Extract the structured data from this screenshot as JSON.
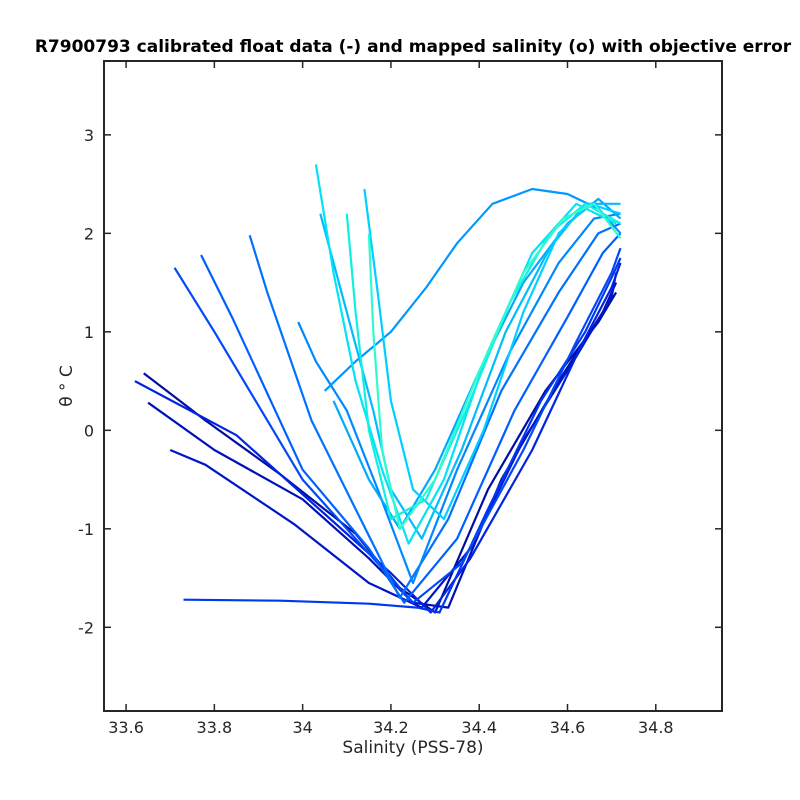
{
  "chart_data": {
    "type": "line",
    "title": "R7900793 calibrated float data (-) and mapped salinity (o) with objective error",
    "xlabel": "Salinity (PSS-78)",
    "ylabel": "θ ° C",
    "xlim": [
      33.55,
      34.95
    ],
    "ylim": [
      -2.85,
      3.75
    ],
    "xticks": [
      33.6,
      33.8,
      34.0,
      34.2,
      34.4,
      34.6,
      34.8
    ],
    "xtick_labels": [
      "33.6",
      "33.8",
      "34",
      "34.2",
      "34.4",
      "34.6",
      "34.8"
    ],
    "yticks": [
      -2,
      -1,
      0,
      1,
      2,
      3
    ],
    "ytick_labels": [
      "-2",
      "-1",
      "0",
      "1",
      "2",
      "3"
    ],
    "grid": false,
    "legend": "none",
    "colormap": "jet (dark blue for early profiles to aqua for later profiles)",
    "series": [
      {
        "color": "#000ea0",
        "x": [
          33.64,
          33.78,
          33.95,
          34.12,
          34.22,
          34.3,
          34.42,
          34.55,
          34.67,
          34.71
        ],
        "y": [
          0.58,
          0.1,
          -0.45,
          -1.05,
          -1.6,
          -1.85,
          -0.6,
          0.4,
          1.1,
          1.4
        ]
      },
      {
        "color": "#0010b8",
        "x": [
          33.65,
          33.8,
          34.0,
          34.15,
          34.25,
          34.33,
          34.45,
          34.58,
          34.68,
          34.71
        ],
        "y": [
          0.28,
          -0.2,
          -0.7,
          -1.3,
          -1.75,
          -1.8,
          -0.5,
          0.5,
          1.2,
          1.5
        ]
      },
      {
        "color": "#0016c8",
        "x": [
          33.7,
          33.78,
          33.98,
          34.15,
          34.27,
          34.38,
          34.5,
          34.62,
          34.7,
          34.71
        ],
        "y": [
          -0.2,
          -0.35,
          -0.95,
          -1.55,
          -1.8,
          -1.2,
          -0.1,
          0.75,
          1.35,
          1.6
        ]
      },
      {
        "color": "#0024e0",
        "x": [
          33.62,
          33.85,
          34.05,
          34.2,
          34.29,
          34.38,
          34.52,
          34.63,
          34.7,
          34.72
        ],
        "y": [
          0.5,
          -0.05,
          -0.85,
          -1.45,
          -1.85,
          -1.3,
          -0.2,
          0.85,
          1.45,
          1.7
        ]
      },
      {
        "color": "#0038f0",
        "x": [
          33.73,
          33.95,
          34.15,
          34.26,
          34.31,
          34.42,
          34.54,
          34.64,
          34.7,
          34.72
        ],
        "y": [
          -1.72,
          -1.73,
          -1.76,
          -1.8,
          -1.85,
          -0.8,
          0.3,
          1.0,
          1.55,
          1.75
        ]
      },
      {
        "color": "#0048f8",
        "x": [
          33.71,
          33.8,
          34.0,
          34.18,
          34.25,
          34.36,
          34.5,
          34.62,
          34.7,
          34.72
        ],
        "y": [
          1.65,
          1.0,
          -0.5,
          -1.4,
          -1.75,
          -1.35,
          -0.2,
          0.9,
          1.6,
          1.85
        ]
      },
      {
        "color": "#0060ff",
        "x": [
          33.77,
          33.84,
          34.0,
          34.15,
          34.23,
          34.35,
          34.48,
          34.6,
          34.68,
          34.72
        ],
        "y": [
          1.78,
          1.15,
          -0.4,
          -1.2,
          -1.75,
          -1.1,
          0.2,
          1.15,
          1.8,
          2.0
        ]
      },
      {
        "color": "#0072ff",
        "x": [
          33.88,
          33.92,
          34.02,
          34.12,
          34.22,
          34.33,
          34.45,
          34.58,
          34.67,
          34.72
        ],
        "y": [
          1.98,
          1.4,
          0.1,
          -0.8,
          -1.7,
          -0.9,
          0.4,
          1.4,
          2.0,
          2.1
        ]
      },
      {
        "color": "#0088ff",
        "x": [
          33.99,
          34.03,
          34.1,
          34.17,
          34.25,
          34.35,
          34.47,
          34.58,
          34.66,
          34.72
        ],
        "y": [
          1.1,
          0.7,
          0.2,
          -0.6,
          -1.55,
          -0.4,
          0.8,
          1.7,
          2.15,
          2.2
        ]
      },
      {
        "color": "#0098ff",
        "x": [
          34.05,
          34.12,
          34.2,
          34.28,
          34.35,
          34.43,
          34.52,
          34.6,
          34.67,
          34.72
        ],
        "y": [
          0.4,
          0.7,
          1.0,
          1.45,
          1.9,
          2.3,
          2.45,
          2.4,
          2.25,
          2.0
        ]
      },
      {
        "color": "#00a8ff",
        "x": [
          34.07,
          34.1,
          34.15,
          34.22,
          34.3,
          34.4,
          34.5,
          34.6,
          34.67,
          34.72
        ],
        "y": [
          0.3,
          0.0,
          -0.5,
          -1.0,
          -0.4,
          0.6,
          1.5,
          2.1,
          2.35,
          2.15
        ]
      },
      {
        "color": "#00bcff",
        "x": [
          34.04,
          34.1,
          34.16,
          34.2,
          34.27,
          34.36,
          34.46,
          34.56,
          34.64,
          34.72
        ],
        "y": [
          2.2,
          1.2,
          0.2,
          -0.6,
          -1.1,
          -0.2,
          1.0,
          1.85,
          2.3,
          2.3
        ]
      },
      {
        "color": "#00d0ff",
        "x": [
          34.14,
          34.17,
          34.2,
          34.25,
          34.32,
          34.41,
          34.5,
          34.58,
          34.65,
          34.72
        ],
        "y": [
          2.45,
          1.4,
          0.3,
          -0.6,
          -0.9,
          0.0,
          1.2,
          2.0,
          2.3,
          2.2
        ]
      },
      {
        "color": "#00e4f4",
        "x": [
          34.03,
          34.07,
          34.12,
          34.18,
          34.24,
          34.32,
          34.42,
          34.52,
          34.62,
          34.71
        ],
        "y": [
          2.7,
          1.6,
          0.5,
          -0.4,
          -1.15,
          -0.5,
          0.8,
          1.8,
          2.3,
          2.1
        ]
      },
      {
        "color": "#10f0e0",
        "x": [
          34.1,
          34.12,
          34.15,
          34.2,
          34.28,
          34.37,
          34.47,
          34.56,
          34.64,
          34.72
        ],
        "y": [
          2.2,
          1.2,
          0.0,
          -0.9,
          -0.7,
          0.2,
          1.3,
          2.0,
          2.3,
          2.1
        ]
      },
      {
        "color": "#30fad0",
        "x": [
          34.15,
          34.16,
          34.18,
          34.22,
          34.3,
          34.4,
          34.5,
          34.59,
          34.66,
          34.72
        ],
        "y": [
          2.0,
          1.0,
          -0.2,
          -1.0,
          -0.5,
          0.6,
          1.6,
          2.15,
          2.3,
          1.95
        ]
      }
    ]
  }
}
